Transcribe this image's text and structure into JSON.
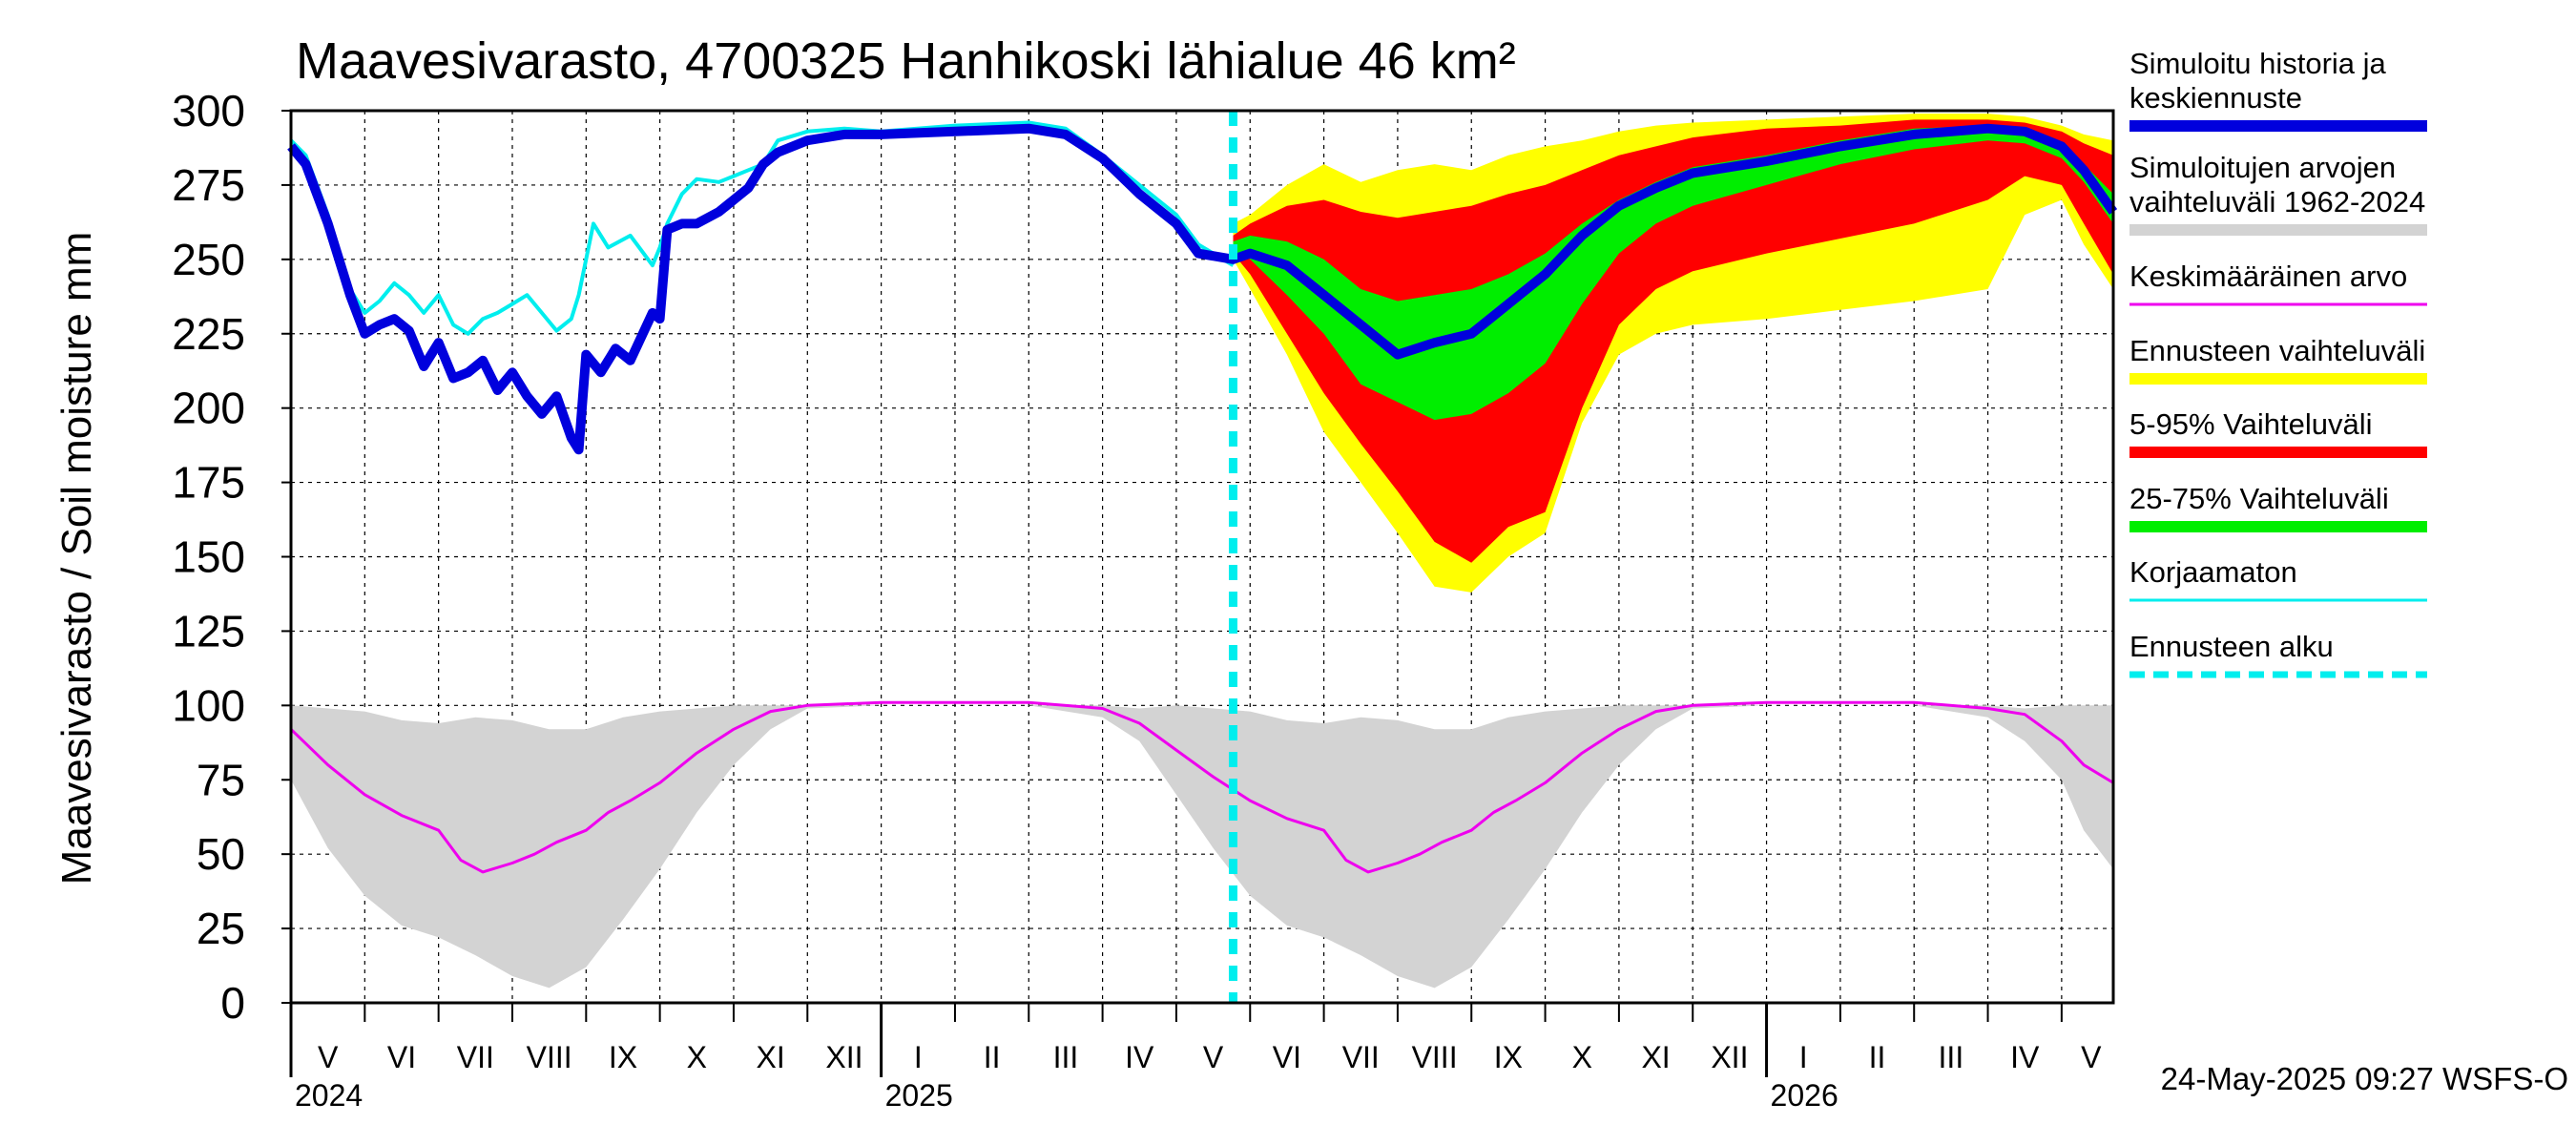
{
  "chart_data": {
    "type": "area",
    "title": "Maavesivarasto, 4700325 Hanhikoski lähialue 46 km²",
    "ylabel": "Maavesivarasto / Soil moisture   mm",
    "xlabel": "",
    "ylim": [
      0,
      300
    ],
    "yticks": [
      0,
      25,
      50,
      75,
      100,
      125,
      150,
      175,
      200,
      225,
      250,
      275,
      300
    ],
    "grid": true,
    "x_unit": "months since 2024-05-01",
    "xlim": [
      0,
      24.7
    ],
    "forecast_start": 12.77,
    "months": [
      {
        "label": "V",
        "x": 0.5
      },
      {
        "label": "VI",
        "x": 1.5
      },
      {
        "label": "VII",
        "x": 2.5
      },
      {
        "label": "VIII",
        "x": 3.5
      },
      {
        "label": "IX",
        "x": 4.5
      },
      {
        "label": "X",
        "x": 5.5
      },
      {
        "label": "XI",
        "x": 6.5
      },
      {
        "label": "XII",
        "x": 7.5
      },
      {
        "label": "I",
        "x": 8.5
      },
      {
        "label": "II",
        "x": 9.5
      },
      {
        "label": "III",
        "x": 10.5
      },
      {
        "label": "IV",
        "x": 11.5
      },
      {
        "label": "V",
        "x": 12.5
      },
      {
        "label": "VI",
        "x": 13.5
      },
      {
        "label": "VII",
        "x": 14.5
      },
      {
        "label": "VIII",
        "x": 15.5
      },
      {
        "label": "IX",
        "x": 16.5
      },
      {
        "label": "X",
        "x": 17.5
      },
      {
        "label": "XI",
        "x": 18.5
      },
      {
        "label": "XII",
        "x": 19.5
      },
      {
        "label": "I",
        "x": 20.5
      },
      {
        "label": "II",
        "x": 21.5
      },
      {
        "label": "III",
        "x": 22.5
      },
      {
        "label": "IV",
        "x": 23.5
      },
      {
        "label": "V",
        "x": 24.4
      }
    ],
    "years": [
      {
        "label": "2024",
        "x": 0
      },
      {
        "label": "2025",
        "x": 8
      },
      {
        "label": "2026",
        "x": 20
      }
    ],
    "year_boundaries": [
      8,
      20
    ],
    "series": [
      {
        "name": "Simuloitujen arvojen vaihteluväli 1962-2024",
        "kind": "band",
        "color": "#d3d3d3",
        "x": [
          0,
          0.5,
          1,
          1.5,
          2,
          2.5,
          3,
          3.5,
          4,
          4.5,
          5,
          5.5,
          6,
          6.5,
          7,
          8,
          9,
          10,
          11,
          11.5,
          12,
          12.5,
          13,
          13.5,
          14,
          14.5,
          15,
          15.5,
          16,
          16.5,
          17,
          17.5,
          18,
          18.5,
          19,
          20,
          21,
          22,
          23,
          23.5,
          24,
          24.3,
          24.7
        ],
        "low": [
          75,
          52,
          36,
          26,
          22,
          16,
          9,
          5,
          12,
          28,
          45,
          64,
          80,
          92,
          99,
          100,
          100,
          100,
          96,
          88,
          70,
          52,
          36,
          26,
          22,
          16,
          9,
          5,
          12,
          28,
          45,
          64,
          80,
          92,
          99,
          100,
          100,
          100,
          96,
          88,
          75,
          58,
          45
        ],
        "high": [
          100,
          99,
          98,
          95,
          94,
          96,
          95,
          92,
          92,
          96,
          98,
          99,
          100,
          100,
          100,
          100,
          100,
          100,
          100,
          99,
          100,
          99,
          98,
          95,
          94,
          96,
          95,
          92,
          92,
          96,
          98,
          99,
          100,
          100,
          100,
          100,
          100,
          100,
          100,
          99,
          100,
          100,
          100
        ]
      },
      {
        "name": "Keskimääräinen arvo",
        "kind": "line",
        "color": "#ee00ee",
        "x": [
          0,
          0.5,
          1,
          1.5,
          2,
          2.3,
          2.6,
          3,
          3.3,
          3.6,
          4,
          4.3,
          4.6,
          5,
          5.5,
          6,
          6.5,
          7,
          8,
          9,
          10,
          11,
          11.5,
          12,
          12.5,
          13,
          13.5,
          14,
          14.3,
          14.6,
          15,
          15.3,
          15.6,
          16,
          16.3,
          16.6,
          17,
          17.5,
          18,
          18.5,
          19,
          20,
          21,
          22,
          23,
          23.5,
          24,
          24.3,
          24.7
        ],
        "values": [
          92,
          80,
          70,
          63,
          58,
          48,
          44,
          47,
          50,
          54,
          58,
          64,
          68,
          74,
          84,
          92,
          98,
          100,
          101,
          101,
          101,
          99,
          94,
          85,
          76,
          68,
          62,
          58,
          48,
          44,
          47,
          50,
          54,
          58,
          64,
          68,
          74,
          84,
          92,
          98,
          100,
          101,
          101,
          101,
          99,
          97,
          88,
          80,
          74
        ]
      },
      {
        "name": "Ennusteen vaihteluväli",
        "kind": "band",
        "color": "#ffff00",
        "x": [
          12.77,
          13,
          13.5,
          14,
          14.5,
          15,
          15.5,
          16,
          16.5,
          17,
          17.5,
          18,
          18.5,
          19,
          20,
          21,
          22,
          23,
          23.5,
          24,
          24.3,
          24.7
        ],
        "low": [
          250,
          240,
          218,
          192,
          175,
          158,
          140,
          138,
          150,
          158,
          195,
          218,
          225,
          228,
          230,
          233,
          236,
          240,
          265,
          270,
          255,
          240
        ],
        "high": [
          262,
          265,
          275,
          282,
          276,
          280,
          282,
          280,
          285,
          288,
          290,
          293,
          295,
          296,
          297,
          298,
          299,
          299,
          298,
          295,
          292,
          290
        ]
      },
      {
        "name": "5-95% Vaihteluväli",
        "kind": "band",
        "color": "#ff0000",
        "x": [
          12.77,
          13,
          13.5,
          14,
          14.5,
          15,
          15.5,
          16,
          16.5,
          17,
          17.5,
          18,
          18.5,
          19,
          20,
          21,
          22,
          23,
          23.5,
          24,
          24.3,
          24.7
        ],
        "low": [
          252,
          245,
          225,
          205,
          188,
          172,
          155,
          148,
          160,
          165,
          200,
          228,
          240,
          246,
          252,
          257,
          262,
          270,
          278,
          275,
          262,
          245
        ],
        "high": [
          258,
          262,
          268,
          270,
          266,
          264,
          266,
          268,
          272,
          275,
          280,
          285,
          288,
          291,
          294,
          295,
          297,
          297,
          296,
          293,
          289,
          285
        ]
      },
      {
        "name": "25-75% Vaihteluväli",
        "kind": "band",
        "color": "#00ee00",
        "x": [
          12.77,
          13,
          13.5,
          14,
          14.5,
          15,
          15.5,
          16,
          16.5,
          17,
          17.5,
          18,
          18.5,
          19,
          20,
          21,
          22,
          23,
          23.5,
          24,
          24.3,
          24.7
        ],
        "low": [
          253,
          250,
          238,
          225,
          208,
          202,
          196,
          198,
          205,
          215,
          235,
          252,
          262,
          268,
          275,
          282,
          287,
          290,
          289,
          284,
          276,
          262
        ],
        "high": [
          256,
          258,
          256,
          250,
          240,
          236,
          238,
          240,
          245,
          252,
          262,
          270,
          276,
          281,
          285,
          290,
          294,
          295,
          293,
          289,
          282,
          272
        ]
      },
      {
        "name": "Korjaamaton",
        "kind": "line",
        "color": "#00eeee",
        "x": [
          0,
          0.2,
          0.5,
          0.8,
          1,
          1.2,
          1.4,
          1.6,
          1.8,
          2,
          2.2,
          2.4,
          2.6,
          2.8,
          3,
          3.2,
          3.4,
          3.6,
          3.8,
          3.9,
          4,
          4.1,
          4.3,
          4.6,
          4.9,
          5,
          5.1,
          5.3,
          5.5,
          5.8,
          6,
          6.2,
          6.4,
          6.6,
          7,
          7.5,
          8,
          9,
          10,
          10.5,
          11,
          11.5,
          12,
          12.3,
          12.77
        ],
        "values": [
          290,
          285,
          265,
          240,
          232,
          236,
          242,
          238,
          232,
          238,
          228,
          225,
          230,
          232,
          235,
          238,
          232,
          226,
          230,
          238,
          250,
          262,
          254,
          258,
          248,
          254,
          262,
          272,
          277,
          276,
          278,
          280,
          282,
          290,
          293,
          294,
          293,
          295,
          296,
          294,
          285,
          275,
          265,
          255,
          248
        ]
      },
      {
        "name": "Simuloitu historia ja keskiennuste",
        "kind": "line",
        "color": "#0000dd",
        "x": [
          0,
          0.2,
          0.5,
          0.8,
          1,
          1.2,
          1.4,
          1.6,
          1.8,
          2,
          2.2,
          2.4,
          2.6,
          2.8,
          3,
          3.2,
          3.4,
          3.6,
          3.8,
          3.9,
          4,
          4.2,
          4.4,
          4.6,
          4.9,
          5,
          5.1,
          5.3,
          5.5,
          5.8,
          6,
          6.2,
          6.4,
          6.6,
          7,
          7.5,
          8,
          9,
          10,
          10.5,
          11,
          11.5,
          12,
          12.3,
          12.77,
          13,
          13.5,
          14,
          14.5,
          15,
          15.5,
          16,
          16.5,
          17,
          17.5,
          18,
          18.5,
          19,
          20,
          21,
          22,
          23,
          23.5,
          24,
          24.3,
          24.7
        ],
        "values": [
          288,
          282,
          262,
          238,
          225,
          228,
          230,
          226,
          214,
          222,
          210,
          212,
          216,
          206,
          212,
          204,
          198,
          204,
          190,
          186,
          218,
          212,
          220,
          216,
          232,
          230,
          260,
          262,
          262,
          266,
          270,
          274,
          282,
          286,
          290,
          292,
          292,
          293,
          294,
          292,
          284,
          272,
          262,
          252,
          250,
          252,
          248,
          238,
          228,
          218,
          222,
          225,
          235,
          245,
          258,
          268,
          274,
          279,
          283,
          288,
          292,
          294,
          293,
          288,
          280,
          266
        ]
      }
    ],
    "legend": [
      {
        "label": "Simuloitu historia ja keskiennuste",
        "color": "#0000dd",
        "style": "thick"
      },
      {
        "label": "Simuloitujen arvojen vaihteluväli 1962-2024",
        "color": "#d3d3d3",
        "style": "thick"
      },
      {
        "label": "Keskimääräinen arvo",
        "color": "#ee00ee",
        "style": "thin"
      },
      {
        "label": "Ennusteen vaihteluväli",
        "color": "#ffff00",
        "style": "thick"
      },
      {
        "label": "5-95% Vaihteluväli",
        "color": "#ff0000",
        "style": "thick"
      },
      {
        "label": "25-75% Vaihteluväli",
        "color": "#00ee00",
        "style": "thick"
      },
      {
        "label": "Korjaamaton",
        "color": "#00eeee",
        "style": "thin"
      },
      {
        "label": "Ennusteen alku",
        "color": "#00eeee",
        "style": "dashed"
      }
    ],
    "legend_position": "right"
  },
  "footer": {
    "timestamp": "24-May-2025 09:27 WSFS-O"
  }
}
